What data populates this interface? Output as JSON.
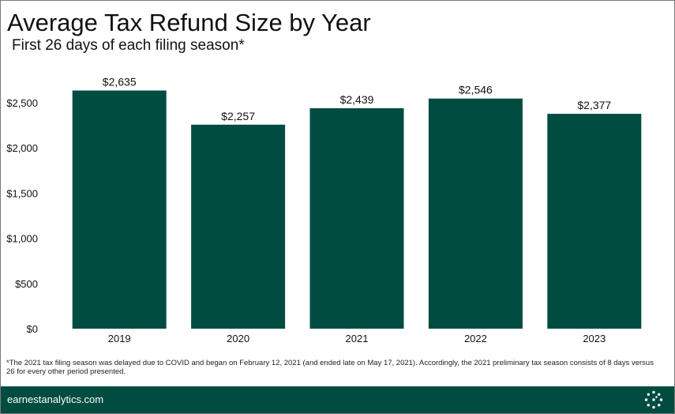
{
  "title": "Average Tax Refund Size by Year",
  "subtitle": "First 26 days of each filing season*",
  "footnote": "*The 2021 tax filing season was delayed due to COVID and began on February 12, 2021 (and ended late on May 17, 2021). Accordingly, the 2021 preliminary tax season consists of 8 days versus 26 for every other period presented.",
  "footer": {
    "url": "earnestanalytics.com",
    "logo_icon": "earnest-dots-logo-icon"
  },
  "colors": {
    "bar": "#004c40",
    "footer": "#004c40"
  },
  "chart_data": {
    "type": "bar",
    "title": "Average Tax Refund Size by Year",
    "subtitle": "First 26 days of each filing season*",
    "categories": [
      "2019",
      "2020",
      "2021",
      "2022",
      "2023"
    ],
    "values": [
      2635,
      2257,
      2439,
      2546,
      2377
    ],
    "data_labels": [
      "$2,635",
      "$2,257",
      "$2,439",
      "$2,546",
      "$2,377"
    ],
    "yticks": [
      0,
      500,
      1000,
      1500,
      2000,
      2500
    ],
    "ytick_labels": [
      "$0",
      "$500",
      "$1,000",
      "$1,500",
      "$2,000",
      "$2,500"
    ],
    "ylim": [
      0,
      2750
    ],
    "grid": false,
    "legend": "none"
  }
}
